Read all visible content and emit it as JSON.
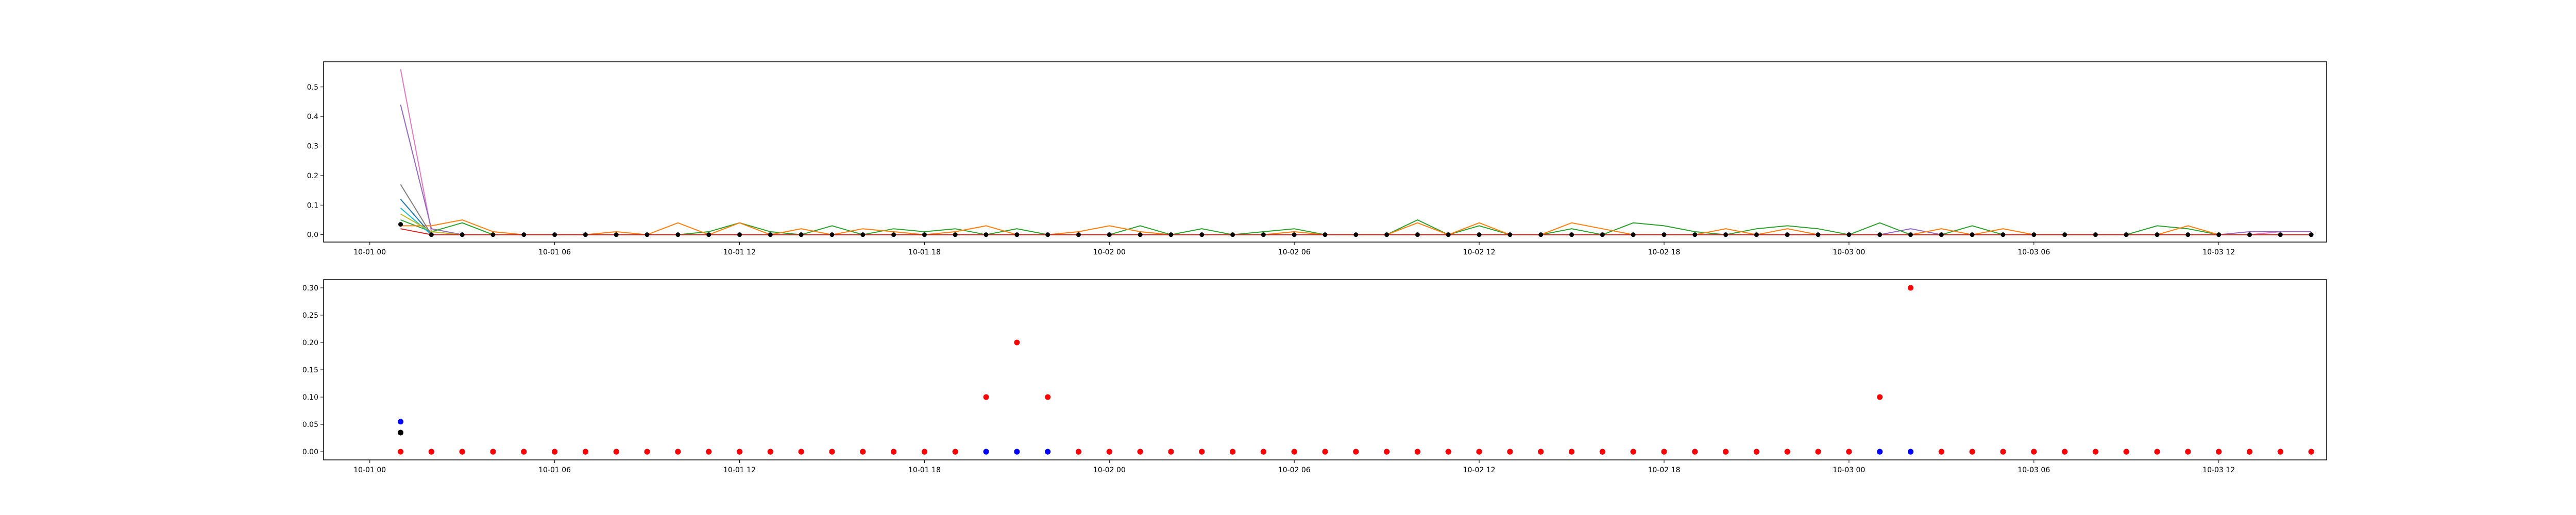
{
  "chart_data": [
    {
      "type": "line",
      "x_ticks": [
        "10-01 00",
        "10-01 06",
        "10-01 12",
        "10-01 18",
        "10-02 00",
        "10-02 06",
        "10-02 12",
        "10-02 18",
        "10-03 00",
        "10-03 06",
        "10-03 12"
      ],
      "x_range_hours": [
        -1.5,
        63.5
      ],
      "x_step_hours": 1,
      "y_ticks": [
        "0.0",
        "0.1",
        "0.2",
        "0.3",
        "0.4",
        "0.5"
      ],
      "ylim": [
        -0.025,
        0.585
      ],
      "grid": false,
      "series": [
        {
          "color": "#e377c2",
          "start_hour": 1,
          "values": [
            0.56,
            0.01,
            0.0,
            0.0,
            0.0,
            0.0,
            0.0,
            0.0,
            0.0,
            0.0,
            0.0,
            0.0,
            0.0,
            0.0,
            0.0,
            0.0,
            0.0,
            0.0,
            0.0,
            0.0,
            0.0,
            0.0,
            0.0,
            0.0,
            0.0,
            0.0,
            0.0,
            0.0,
            0.0,
            0.0,
            0.0,
            0.0,
            0.0,
            0.0,
            0.0,
            0.0,
            0.0,
            0.0,
            0.0,
            0.0,
            0.0,
            0.0,
            0.0,
            0.0,
            0.0,
            0.0,
            0.0,
            0.0,
            0.0,
            0.0,
            0.0,
            0.0,
            0.0,
            0.0,
            0.0,
            0.0,
            0.0,
            0.0,
            0.0,
            0.0,
            0.0,
            0.01,
            0.01
          ]
        },
        {
          "color": "#9467bd",
          "start_hour": 1,
          "values": [
            0.44,
            0.02,
            0.0,
            0.0,
            0.0,
            0.0,
            0.0,
            0.0,
            0.0,
            0.0,
            0.0,
            0.0,
            0.0,
            0.0,
            0.0,
            0.0,
            0.0,
            0.0,
            0.0,
            0.0,
            0.0,
            0.0,
            0.0,
            0.0,
            0.0,
            0.0,
            0.0,
            0.0,
            0.0,
            0.0,
            0.0,
            0.0,
            0.0,
            0.0,
            0.0,
            0.0,
            0.0,
            0.0,
            0.0,
            0.0,
            0.0,
            0.0,
            0.0,
            0.0,
            0.0,
            0.0,
            0.0,
            0.0,
            0.0,
            0.02,
            0.0,
            0.0,
            0.0,
            0.0,
            0.0,
            0.0,
            0.0,
            0.0,
            0.0,
            0.0,
            0.01,
            0.01,
            0.01
          ]
        },
        {
          "color": "#2ca02c",
          "start_hour": 1,
          "values": [
            0.05,
            0.01,
            0.04,
            0.0,
            0.0,
            0.0,
            0.0,
            0.0,
            0.0,
            0.0,
            0.01,
            0.04,
            0.01,
            0.0,
            0.03,
            0.0,
            0.02,
            0.01,
            0.02,
            0.0,
            0.02,
            0.0,
            0.0,
            0.0,
            0.03,
            0.0,
            0.02,
            0.0,
            0.01,
            0.02,
            0.0,
            0.0,
            0.0,
            0.05,
            0.0,
            0.03,
            0.0,
            0.0,
            0.02,
            0.0,
            0.04,
            0.03,
            0.01,
            0.0,
            0.02,
            0.03,
            0.02,
            0.0,
            0.04,
            0.0,
            0.0,
            0.03,
            0.0,
            0.0,
            0.0,
            0.0,
            0.0,
            0.03,
            0.02,
            0.0,
            0.0,
            0.0,
            0.0
          ]
        },
        {
          "color": "#ff7f0e",
          "start_hour": 1,
          "values": [
            0.03,
            0.03,
            0.05,
            0.01,
            0.0,
            0.0,
            0.0,
            0.01,
            0.0,
            0.04,
            0.0,
            0.04,
            0.0,
            0.02,
            0.0,
            0.02,
            0.01,
            0.0,
            0.01,
            0.03,
            0.0,
            0.0,
            0.01,
            0.03,
            0.01,
            0.0,
            0.0,
            0.0,
            0.0,
            0.01,
            0.0,
            0.0,
            0.0,
            0.04,
            0.0,
            0.04,
            0.0,
            0.0,
            0.04,
            0.02,
            0.0,
            0.0,
            0.0,
            0.02,
            0.0,
            0.02,
            0.0,
            0.0,
            0.0,
            0.0,
            0.02,
            0.0,
            0.02,
            0.0,
            0.0,
            0.0,
            0.0,
            0.0,
            0.03,
            0.0,
            0.0,
            0.0,
            0.0
          ]
        },
        {
          "color": "#1f77b4",
          "start_hour": 1,
          "values": [
            0.12,
            0.0,
            0.0,
            0.0,
            0.0,
            0.0,
            0.0,
            0.0,
            0.0,
            0.0,
            0.0,
            0.0,
            0.0,
            0.0,
            0.0,
            0.0,
            0.0,
            0.0,
            0.0,
            0.0,
            0.0,
            0.0,
            0.0,
            0.0,
            0.0,
            0.0,
            0.0,
            0.0,
            0.0,
            0.0,
            0.0,
            0.0,
            0.0,
            0.0,
            0.0,
            0.0,
            0.0,
            0.0,
            0.0,
            0.0,
            0.0,
            0.0,
            0.0,
            0.0,
            0.0,
            0.0,
            0.0,
            0.0,
            0.0,
            0.0,
            0.0,
            0.0,
            0.0,
            0.0,
            0.0,
            0.0,
            0.0,
            0.0,
            0.0,
            0.0,
            0.0,
            0.0,
            0.0
          ]
        },
        {
          "color": "#17becf",
          "start_hour": 1,
          "values": [
            0.09,
            0.0,
            0.0,
            0.0,
            0.0,
            0.0,
            0.0,
            0.0,
            0.0,
            0.0,
            0.0,
            0.0,
            0.0,
            0.0,
            0.0,
            0.0,
            0.0,
            0.0,
            0.0,
            0.0,
            0.0,
            0.0,
            0.0,
            0.0,
            0.0,
            0.0,
            0.0,
            0.0,
            0.0,
            0.0,
            0.0,
            0.0,
            0.0,
            0.0,
            0.0,
            0.0,
            0.0,
            0.0,
            0.0,
            0.0,
            0.0,
            0.0,
            0.0,
            0.0,
            0.0,
            0.0,
            0.0,
            0.0,
            0.0,
            0.0,
            0.0,
            0.0,
            0.0,
            0.0,
            0.0,
            0.0,
            0.0,
            0.0,
            0.0,
            0.0,
            0.0,
            0.0,
            0.0
          ]
        },
        {
          "color": "#bcbd22",
          "start_hour": 1,
          "values": [
            0.07,
            0.01,
            0.0,
            0.0,
            0.0,
            0.0,
            0.0,
            0.0,
            0.0,
            0.0,
            0.0,
            0.0,
            0.0,
            0.0,
            0.0,
            0.0,
            0.0,
            0.0,
            0.0,
            0.0,
            0.0,
            0.0,
            0.0,
            0.0,
            0.0,
            0.0,
            0.0,
            0.0,
            0.0,
            0.0,
            0.0,
            0.0,
            0.0,
            0.0,
            0.0,
            0.0,
            0.0,
            0.0,
            0.0,
            0.0,
            0.0,
            0.0,
            0.0,
            0.0,
            0.0,
            0.0,
            0.0,
            0.0,
            0.0,
            0.0,
            0.0,
            0.0,
            0.0,
            0.0,
            0.0,
            0.0,
            0.0,
            0.0,
            0.0,
            0.0,
            0.0,
            0.0,
            0.0
          ]
        },
        {
          "color": "#7f7f7f",
          "start_hour": 1,
          "values": [
            0.17,
            0.0,
            0.0,
            0.0,
            0.0,
            0.0,
            0.0,
            0.0,
            0.0,
            0.0,
            0.0,
            0.0,
            0.0,
            0.0,
            0.0,
            0.0,
            0.0,
            0.0,
            0.0,
            0.0,
            0.0,
            0.0,
            0.0,
            0.0,
            0.0,
            0.0,
            0.0,
            0.0,
            0.0,
            0.0,
            0.0,
            0.0,
            0.0,
            0.0,
            0.0,
            0.0,
            0.0,
            0.0,
            0.0,
            0.0,
            0.0,
            0.0,
            0.0,
            0.0,
            0.0,
            0.0,
            0.0,
            0.0,
            0.0,
            0.0,
            0.0,
            0.0,
            0.0,
            0.0,
            0.0,
            0.0,
            0.0,
            0.0,
            0.0,
            0.0,
            0.0,
            0.0,
            0.0
          ]
        },
        {
          "color": "#d62728",
          "start_hour": 1,
          "values": [
            0.02,
            0.0,
            0.0,
            0.0,
            0.0,
            0.0,
            0.0,
            0.0,
            0.0,
            0.0,
            0.0,
            0.0,
            0.0,
            0.0,
            0.0,
            0.0,
            0.0,
            0.0,
            0.0,
            0.0,
            0.0,
            0.0,
            0.0,
            0.0,
            0.0,
            0.0,
            0.0,
            0.0,
            0.0,
            0.0,
            0.0,
            0.0,
            0.0,
            0.0,
            0.0,
            0.0,
            0.0,
            0.0,
            0.0,
            0.0,
            0.0,
            0.0,
            0.0,
            0.0,
            0.0,
            0.0,
            0.0,
            0.0,
            0.0,
            0.0,
            0.0,
            0.0,
            0.0,
            0.0,
            0.0,
            0.0,
            0.0,
            0.0,
            0.0,
            0.0,
            0.0,
            0.0,
            0.0
          ]
        },
        {
          "color": "#000000",
          "marker": "dot",
          "start_hour": 1,
          "values": [
            0.035,
            0.0,
            0.0,
            0.0,
            0.0,
            0.0,
            0.0,
            0.0,
            0.0,
            0.0,
            0.0,
            0.0,
            0.0,
            0.0,
            0.0,
            0.0,
            0.0,
            0.0,
            0.0,
            0.0,
            0.0,
            0.0,
            0.0,
            0.0,
            0.0,
            0.0,
            0.0,
            0.0,
            0.0,
            0.0,
            0.0,
            0.0,
            0.0,
            0.0,
            0.0,
            0.0,
            0.0,
            0.0,
            0.0,
            0.0,
            0.0,
            0.0,
            0.0,
            0.0,
            0.0,
            0.0,
            0.0,
            0.0,
            0.0,
            0.0,
            0.0,
            0.0,
            0.0,
            0.0,
            0.0,
            0.0,
            0.0,
            0.0,
            0.0,
            0.0,
            0.0,
            0.0,
            0.0
          ]
        }
      ]
    },
    {
      "type": "scatter",
      "x_ticks": [
        "10-01 00",
        "10-01 06",
        "10-01 12",
        "10-01 18",
        "10-02 00",
        "10-02 06",
        "10-02 12",
        "10-02 18",
        "10-03 00",
        "10-03 06",
        "10-03 12"
      ],
      "x_range_hours": [
        -1.5,
        63.5
      ],
      "x_step_hours": 1,
      "y_ticks": [
        "0.00",
        "0.05",
        "0.10",
        "0.15",
        "0.20",
        "0.25",
        "0.30"
      ],
      "ylim": [
        -0.015,
        0.315
      ],
      "grid": false,
      "series": [
        {
          "color": "#000000",
          "start_hour": 1,
          "values": [
            0.035,
            0.0,
            0.0,
            0.0,
            0.0,
            0.0,
            0.0,
            0.0,
            0.0,
            0.0,
            0.0,
            0.0,
            0.0,
            0.0,
            0.0,
            0.0,
            0.0,
            0.0,
            0.0,
            0.0,
            0.0,
            0.0,
            0.0,
            0.0,
            0.0,
            0.0,
            0.0,
            0.0,
            0.0,
            0.0,
            0.0,
            0.0,
            0.0,
            0.0,
            0.0,
            0.0,
            0.0,
            0.0,
            0.0,
            0.0,
            0.0,
            0.0,
            0.0,
            0.0,
            0.0,
            0.0,
            0.0,
            0.0,
            0.0,
            0.0,
            0.0,
            0.0,
            0.0,
            0.0,
            0.0,
            0.0,
            0.0,
            0.0,
            0.0,
            0.0,
            0.0,
            0.0,
            0.0
          ]
        },
        {
          "color": "#0000ff",
          "start_hour": 1,
          "values": [
            0.055,
            0.0,
            0.0,
            0.0,
            0.0,
            0.0,
            0.0,
            0.0,
            0.0,
            0.0,
            0.0,
            0.0,
            0.0,
            0.0,
            0.0,
            0.0,
            0.0,
            0.0,
            0.0,
            0.0,
            0.0,
            0.0,
            0.0,
            0.0,
            0.0,
            0.0,
            0.0,
            0.0,
            0.0,
            0.0,
            0.0,
            0.0,
            0.0,
            0.0,
            0.0,
            0.0,
            0.0,
            0.0,
            0.0,
            0.0,
            0.0,
            0.0,
            0.0,
            0.0,
            0.0,
            0.0,
            0.0,
            0.0,
            0.0,
            0.0,
            0.0,
            0.0,
            0.0,
            0.0,
            0.0,
            0.0,
            0.0,
            0.0,
            0.0,
            0.0,
            0.0,
            0.0,
            0.0
          ]
        },
        {
          "color": "#ff0000",
          "start_hour": 1,
          "values": [
            0.0,
            0.0,
            0.0,
            0.0,
            0.0,
            0.0,
            0.0,
            0.0,
            0.0,
            0.0,
            0.0,
            0.0,
            0.0,
            0.0,
            0.0,
            0.0,
            0.0,
            0.0,
            0.0,
            0.1,
            0.2,
            0.1,
            0.0,
            0.0,
            0.0,
            0.0,
            0.0,
            0.0,
            0.0,
            0.0,
            0.0,
            0.0,
            0.0,
            0.0,
            0.0,
            0.0,
            0.0,
            0.0,
            0.0,
            0.0,
            0.0,
            0.0,
            0.0,
            0.0,
            0.0,
            0.0,
            0.0,
            0.0,
            0.1,
            0.3,
            0.0,
            0.0,
            0.0,
            0.0,
            0.0,
            0.0,
            0.0,
            0.0,
            0.0,
            0.0,
            0.0,
            0.0,
            0.0
          ]
        }
      ]
    }
  ]
}
